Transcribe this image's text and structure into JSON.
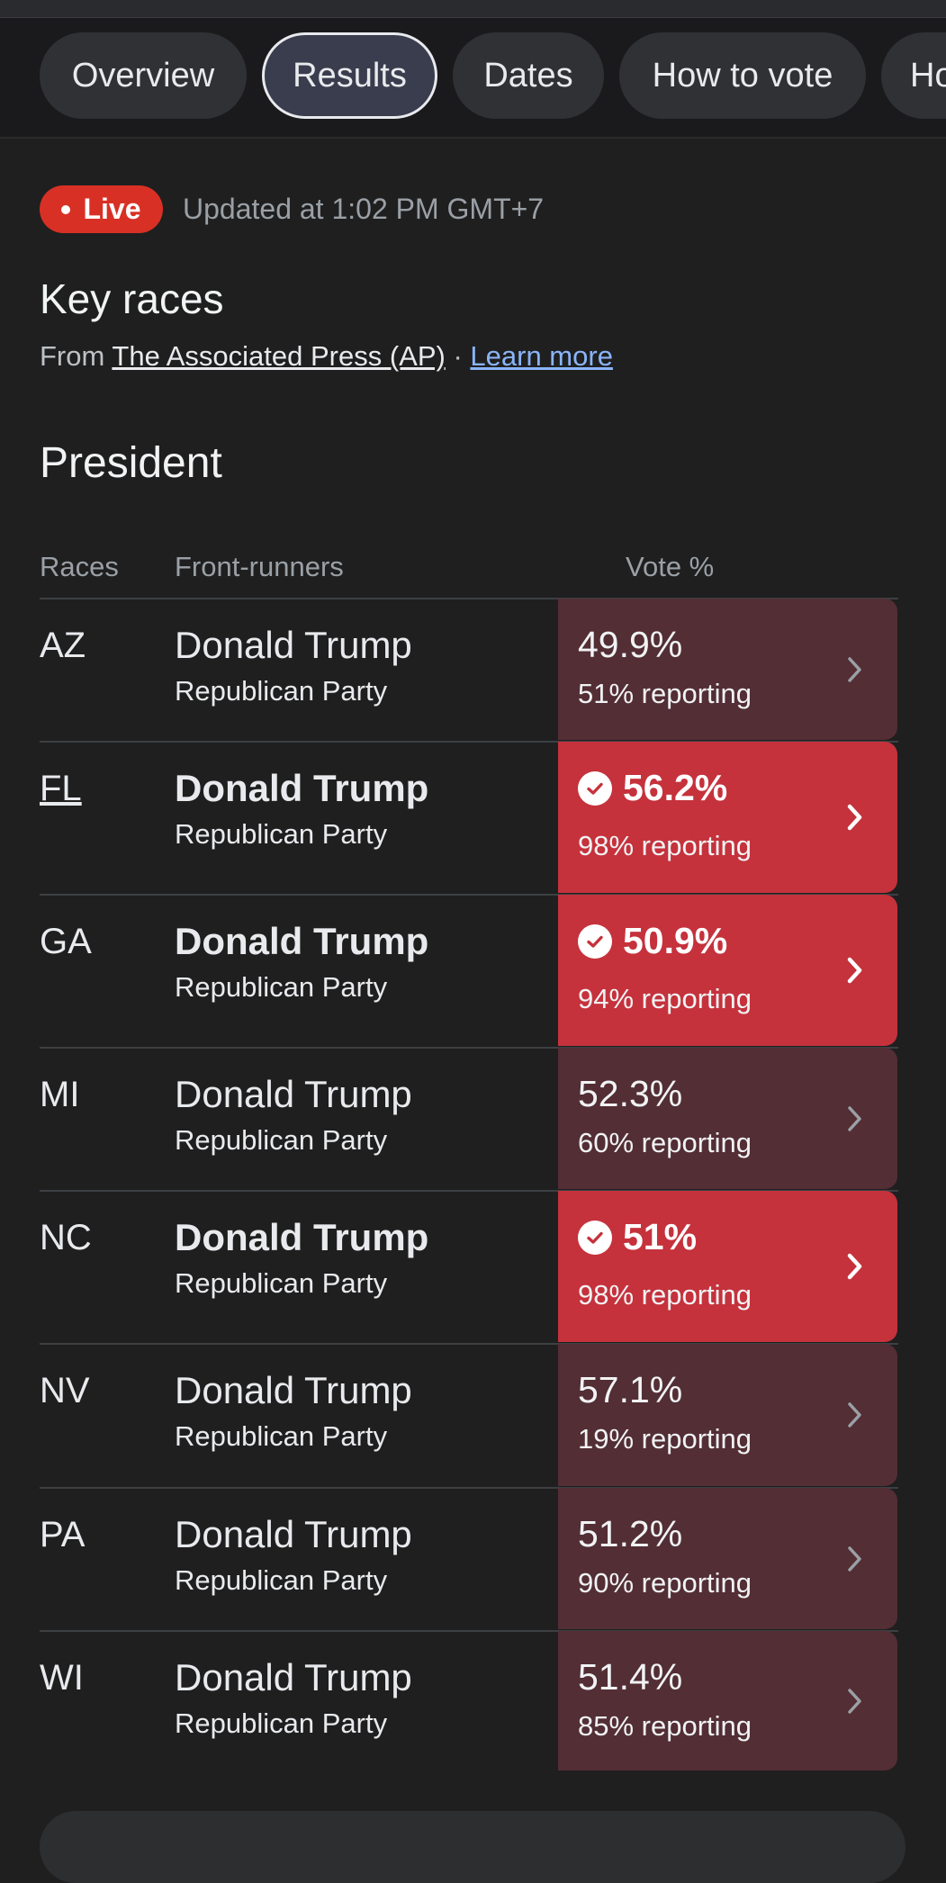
{
  "tabs": [
    "Overview",
    "Results",
    "Dates",
    "How to vote",
    "Ho"
  ],
  "live": {
    "label": "Live",
    "updated": "Updated at 1:02 PM GMT+7"
  },
  "key_races": {
    "title": "Key races",
    "from_label": "From",
    "source": "The Associated Press (AP)",
    "separator": "·",
    "learn_more": "Learn more"
  },
  "section_title": "President",
  "headers": {
    "races": "Races",
    "front_runners": "Front-runners",
    "vote": "Vote %"
  },
  "races": [
    {
      "state": "AZ",
      "name": "Donald Trump",
      "party": "Republican Party",
      "pct": "49.9%",
      "reporting": "51% reporting",
      "called": false
    },
    {
      "state": "FL",
      "name": "Donald Trump",
      "party": "Republican Party",
      "pct": "56.2%",
      "reporting": "98% reporting",
      "called": true
    },
    {
      "state": "GA",
      "name": "Donald Trump",
      "party": "Republican Party",
      "pct": "50.9%",
      "reporting": "94% reporting",
      "called": true
    },
    {
      "state": "MI",
      "name": "Donald Trump",
      "party": "Republican Party",
      "pct": "52.3%",
      "reporting": "60% reporting",
      "called": false
    },
    {
      "state": "NC",
      "name": "Donald Trump",
      "party": "Republican Party",
      "pct": "51%",
      "reporting": "98% reporting",
      "called": true
    },
    {
      "state": "NV",
      "name": "Donald Trump",
      "party": "Republican Party",
      "pct": "57.1%",
      "reporting": "19% reporting",
      "called": false
    },
    {
      "state": "PA",
      "name": "Donald Trump",
      "party": "Republican Party",
      "pct": "51.2%",
      "reporting": "90% reporting",
      "called": false
    },
    {
      "state": "WI",
      "name": "Donald Trump",
      "party": "Republican Party",
      "pct": "51.4%",
      "reporting": "85% reporting",
      "called": false
    }
  ],
  "colors": {
    "called": "#c5323c",
    "leading": "#532e35",
    "live": "#d93025",
    "link": "#8ab4f8"
  }
}
